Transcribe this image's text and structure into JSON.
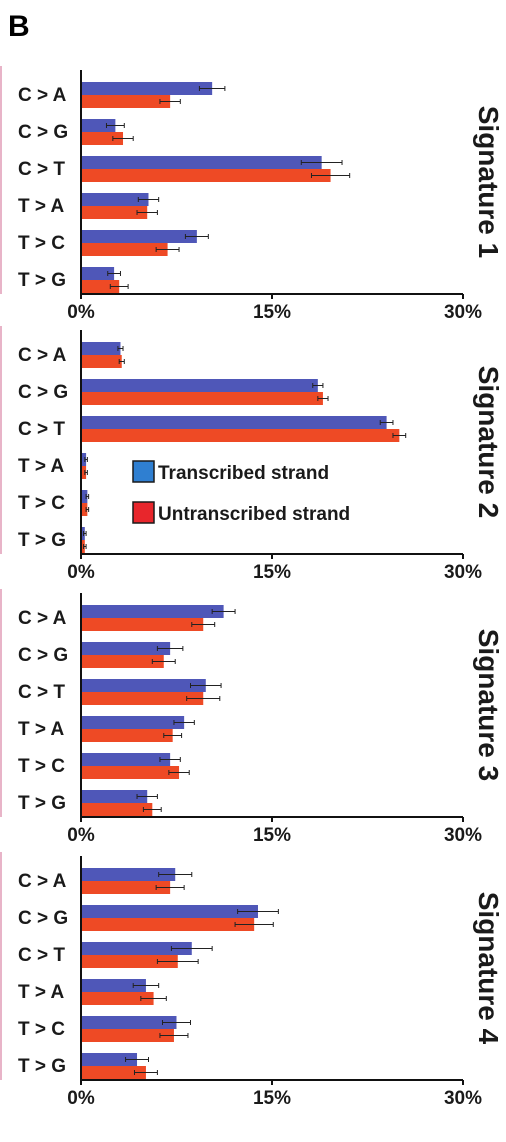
{
  "panel_label": "B",
  "colors": {
    "transcribed": "#4f57b8",
    "untranscribed": "#ee4a25",
    "legend_transcribed": "#2f7fd1",
    "legend_untranscribed": "#e8262c",
    "axis": "#111111",
    "error": "#222222",
    "pink_mark": "#e8b4c8"
  },
  "legend": {
    "transcribed_label": "Transcribed strand",
    "untranscribed_label": "Untranscribed strand"
  },
  "chart_data": [
    {
      "type": "bar",
      "orientation": "horizontal",
      "title": "Signature 1",
      "categories": [
        "C > A",
        "C > G",
        "C > T",
        "T > A",
        "T > C",
        "T > G"
      ],
      "series": [
        {
          "name": "Transcribed strand",
          "values": [
            10.3,
            2.7,
            18.9,
            5.3,
            9.1,
            2.6
          ],
          "errors": [
            1.0,
            0.7,
            1.6,
            0.8,
            0.9,
            0.5
          ]
        },
        {
          "name": "Untranscribed strand",
          "values": [
            7.0,
            3.3,
            19.6,
            5.2,
            6.8,
            3.0
          ],
          "errors": [
            0.8,
            0.8,
            1.5,
            0.8,
            0.9,
            0.7
          ]
        }
      ],
      "xlim": [
        0,
        30
      ],
      "xticks": [
        "0%",
        "15%",
        "30%"
      ]
    },
    {
      "type": "bar",
      "orientation": "horizontal",
      "title": "Signature 2",
      "categories": [
        "C > A",
        "C > G",
        "C > T",
        "T > A",
        "T > C",
        "T > G"
      ],
      "series": [
        {
          "name": "Transcribed strand",
          "values": [
            3.1,
            18.6,
            24.0,
            0.4,
            0.5,
            0.3
          ],
          "errors": [
            0.2,
            0.4,
            0.5,
            0.1,
            0.1,
            0.1
          ]
        },
        {
          "name": "Untranscribed strand",
          "values": [
            3.2,
            19.0,
            25.0,
            0.4,
            0.5,
            0.3
          ],
          "errors": [
            0.2,
            0.4,
            0.5,
            0.1,
            0.1,
            0.1
          ]
        }
      ],
      "xlim": [
        0,
        30
      ],
      "xticks": [
        "0%",
        "15%",
        "30%"
      ]
    },
    {
      "type": "bar",
      "orientation": "horizontal",
      "title": "Signature 3",
      "categories": [
        "C > A",
        "C > G",
        "C > T",
        "T > A",
        "T > C",
        "T > G"
      ],
      "series": [
        {
          "name": "Transcribed strand",
          "values": [
            11.2,
            7.0,
            9.8,
            8.1,
            7.0,
            5.2
          ],
          "errors": [
            0.9,
            1.0,
            1.2,
            0.8,
            0.8,
            0.8
          ]
        },
        {
          "name": "Untranscribed strand",
          "values": [
            9.6,
            6.5,
            9.6,
            7.2,
            7.7,
            5.6
          ],
          "errors": [
            0.9,
            0.9,
            1.3,
            0.7,
            0.8,
            0.7
          ]
        }
      ],
      "xlim": [
        0,
        30
      ],
      "xticks": [
        "0%",
        "15%",
        "30%"
      ]
    },
    {
      "type": "bar",
      "orientation": "horizontal",
      "title": "Signature 4",
      "categories": [
        "C > A",
        "C > G",
        "C > T",
        "T > A",
        "T > C",
        "T > G"
      ],
      "series": [
        {
          "name": "Transcribed strand",
          "values": [
            7.4,
            13.9,
            8.7,
            5.1,
            7.5,
            4.4
          ],
          "errors": [
            1.3,
            1.6,
            1.6,
            1.0,
            1.1,
            0.9
          ]
        },
        {
          "name": "Untranscribed strand",
          "values": [
            7.0,
            13.6,
            7.6,
            5.7,
            7.3,
            5.1
          ],
          "errors": [
            1.1,
            1.5,
            1.6,
            1.0,
            1.1,
            0.9
          ]
        }
      ],
      "xlim": [
        0,
        30
      ],
      "xticks": [
        "0%",
        "15%",
        "30%"
      ]
    }
  ]
}
